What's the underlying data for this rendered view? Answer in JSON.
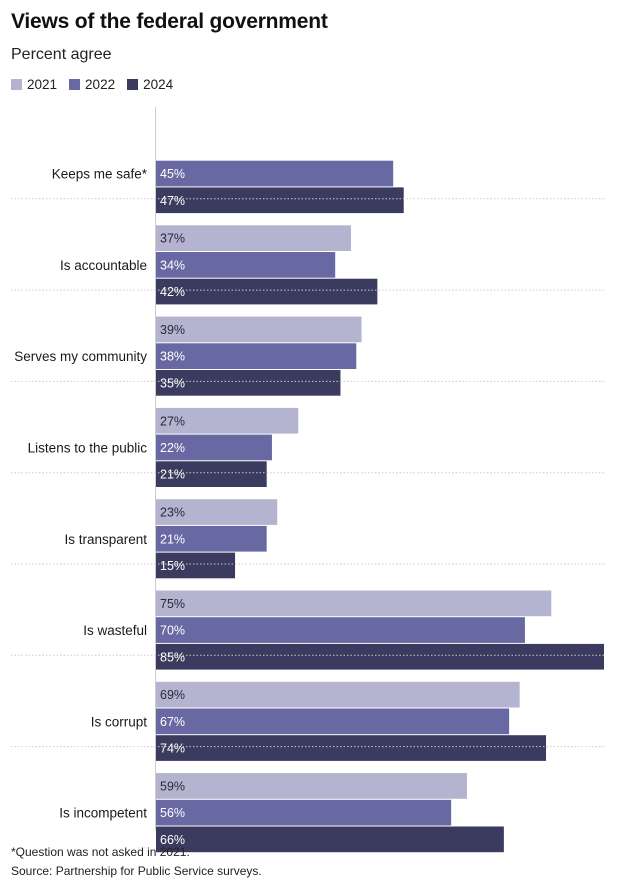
{
  "chart_data": {
    "type": "bar",
    "orientation": "horizontal",
    "title": "Views of the federal government",
    "subtitle": "Percent agree",
    "value_suffix": "%",
    "xlim": [
      0,
      85
    ],
    "grid": false,
    "legend_position": "top-left",
    "series": [
      {
        "name": "2021",
        "color": "#b4b3d0"
      },
      {
        "name": "2022",
        "color": "#6869a3"
      },
      {
        "name": "2024",
        "color": "#3b3b5f"
      }
    ],
    "groups": [
      {
        "category": "Keeps me safe*",
        "values": [
          null,
          45,
          47
        ]
      },
      {
        "category": "Is accountable",
        "values": [
          37,
          34,
          42
        ]
      },
      {
        "category": "Serves my community",
        "values": [
          39,
          38,
          35
        ]
      },
      {
        "category": "Listens to the public",
        "values": [
          27,
          22,
          21
        ]
      },
      {
        "category": "Is transparent",
        "values": [
          23,
          21,
          15
        ]
      },
      {
        "category": "Is wasteful",
        "values": [
          75,
          70,
          85
        ]
      },
      {
        "category": "Is corrupt",
        "values": [
          69,
          67,
          74
        ]
      },
      {
        "category": "Is incompetent",
        "values": [
          59,
          56,
          66
        ]
      }
    ],
    "footnote": "*Question was not asked in 2021.",
    "source": "Source: Partnership for Public Service surveys."
  }
}
